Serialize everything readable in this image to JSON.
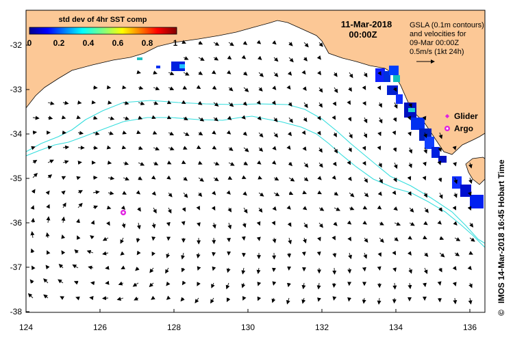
{
  "colorbar": {
    "title": "std dev of 4hr SST comp",
    "ticks": [
      "0",
      "0.2",
      "0.4",
      "0.6",
      "0.8",
      "1"
    ]
  },
  "header": {
    "date": "11-Mar-2018",
    "time": "00:00Z"
  },
  "legend": {
    "line1": "GSLA (0.1m contours)",
    "line2": "and velocities for",
    "line3": "09-Mar 00:00Z",
    "line4": "0.5m/s (1kt 24h)"
  },
  "markers": {
    "glider_label": "Glider",
    "argo_label": "Argo"
  },
  "credit": {
    "copyright": "©",
    "text": "IMOS 14-Mar-2018 16:45 Hobart Time"
  },
  "axes": {
    "x_ticks": [
      "124",
      "126",
      "128",
      "130",
      "132",
      "134",
      "136"
    ],
    "y_ticks": [
      "-32",
      "-33",
      "-34",
      "-35",
      "-36",
      "-37",
      "-38"
    ],
    "lon_range": [
      124,
      136.5
    ],
    "lat_range": [
      -38.1,
      -31.3
    ]
  },
  "colors": {
    "land": "#fcc896",
    "contour": "#33dddd",
    "argo": "#e020e0",
    "vector": "#000000"
  }
}
